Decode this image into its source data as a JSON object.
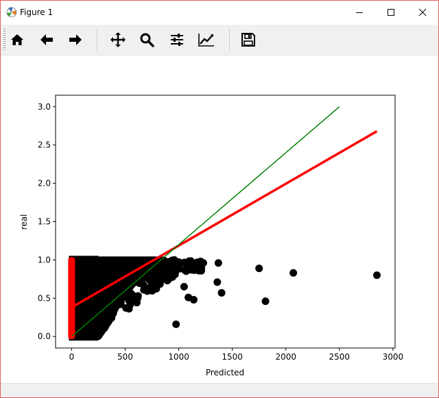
{
  "window": {
    "title": "Figure 1",
    "minimize_icon": "minimize-icon",
    "maximize_icon": "maximize-icon",
    "close_icon": "close-icon"
  },
  "toolbar": {
    "tools": [
      {
        "name": "home",
        "icon": "home-icon"
      },
      {
        "name": "back",
        "icon": "back-arrow-icon"
      },
      {
        "name": "forward",
        "icon": "forward-arrow-icon"
      },
      {
        "name": "pan",
        "icon": "move-icon"
      },
      {
        "name": "zoom",
        "icon": "magnifier-icon"
      },
      {
        "name": "configure-subplots",
        "icon": "sliders-icon"
      },
      {
        "name": "edit-axis",
        "icon": "line-chart-icon"
      },
      {
        "name": "save",
        "icon": "floppy-disk-icon"
      }
    ]
  },
  "chart_data": {
    "type": "scatter",
    "xlabel": "Predicted",
    "ylabel": "real",
    "xlim": [
      -150,
      3020
    ],
    "ylim": [
      -0.15,
      3.15
    ],
    "x_ticks": [
      0,
      500,
      1000,
      1500,
      2000,
      2500,
      3000
    ],
    "y_ticks": [
      0.0,
      0.5,
      1.0,
      1.5,
      2.0,
      2.5,
      3.0
    ],
    "x_tick_labels": [
      "0",
      "500",
      "1000",
      "1500",
      "2000",
      "2500",
      "3000"
    ],
    "y_tick_labels": [
      "0.0",
      "0.5",
      "1.0",
      "1.5",
      "2.0",
      "2.5",
      "3.0"
    ],
    "grid": false,
    "colors": {
      "points": "#000000",
      "red_points": "#ff0000",
      "fit_line": "#ff0000",
      "identity_line": "#008000"
    },
    "outlier_points": [
      {
        "x": 975,
        "y": 0.16
      },
      {
        "x": 1050,
        "y": 0.65
      },
      {
        "x": 1090,
        "y": 0.51
      },
      {
        "x": 1140,
        "y": 0.48
      },
      {
        "x": 1190,
        "y": 0.93
      },
      {
        "x": 1230,
        "y": 0.96
      },
      {
        "x": 1360,
        "y": 0.71
      },
      {
        "x": 1400,
        "y": 0.57
      },
      {
        "x": 1370,
        "y": 0.96
      },
      {
        "x": 1750,
        "y": 0.89
      },
      {
        "x": 1810,
        "y": 0.46
      },
      {
        "x": 2070,
        "y": 0.83
      },
      {
        "x": 2850,
        "y": 0.8
      }
    ],
    "fit_line": {
      "x": [
        0,
        2850
      ],
      "y": [
        0.38,
        2.68
      ]
    },
    "identity_line": {
      "x": [
        0,
        2500
      ],
      "y": [
        0.0,
        3.0
      ]
    }
  }
}
